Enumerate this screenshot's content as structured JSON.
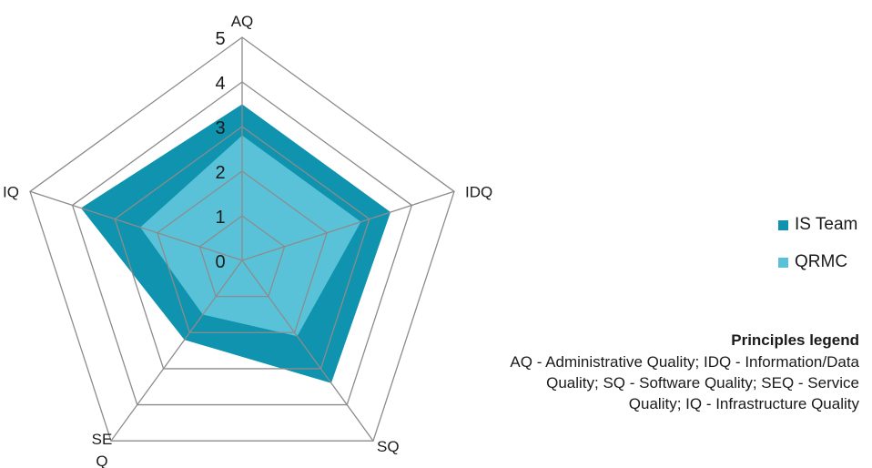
{
  "chart_data": {
    "type": "radar",
    "axes": [
      "AQ",
      "IDQ",
      "SQ",
      "SE\nQ",
      "IQ"
    ],
    "rlim": [
      0,
      5
    ],
    "ticks": [
      0,
      1,
      2,
      3,
      4,
      5
    ],
    "series": [
      {
        "name": "IS Team",
        "values": [
          3.5,
          3.5,
          3.4,
          2.2,
          3.8
        ],
        "color": "#0f93ae"
      },
      {
        "name": "QRMC",
        "values": [
          2.8,
          2.8,
          2.1,
          1.5,
          2.4
        ],
        "color": "#5ac2d8"
      }
    ],
    "legend_position": "right",
    "grid": true
  },
  "principles_legend": {
    "title": "Principles legend",
    "text": "AQ - Administrative Quality; IDQ - Information/Data Quality; SQ - Software Quality; SEQ - Service Quality; IQ - Infrastructure Quality"
  }
}
